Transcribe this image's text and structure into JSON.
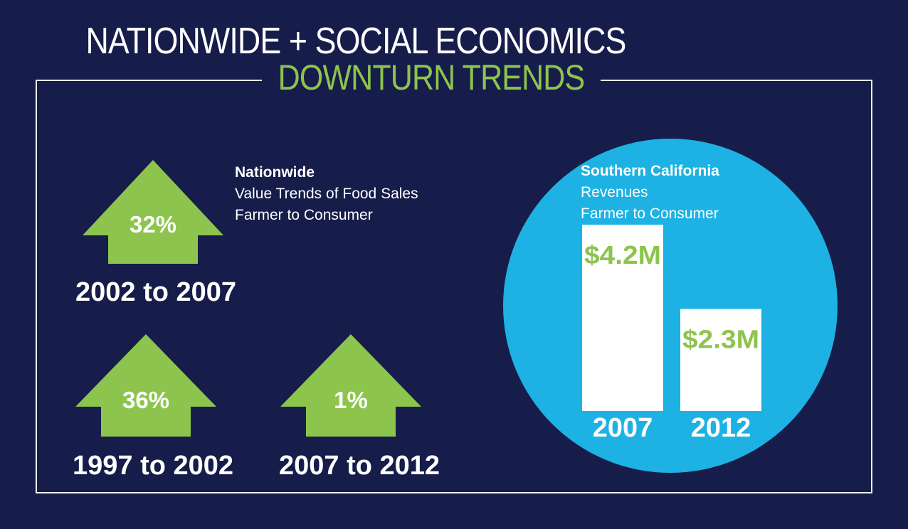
{
  "header": {
    "title": "NATIONWIDE + SOCIAL ECONOMICS",
    "subtitle": "DOWNTURN TRENDS"
  },
  "nationwide": {
    "heading": "Nationwide",
    "line1": "Value Trends of Food Sales",
    "line2": "Farmer to Consumer",
    "arrow_color": "#8dc44d",
    "trends": [
      {
        "percent": "32%",
        "range": "2002 to 2007"
      },
      {
        "percent": "36%",
        "range": "1997 to 2002"
      },
      {
        "percent": "1%",
        "range": "2007 to 2012"
      }
    ]
  },
  "southern_california": {
    "heading": "Southern California",
    "line1": "Revenues",
    "line2": "Farmer to Consumer",
    "circle_color": "#1db2e3"
  },
  "chart_data": {
    "type": "bar",
    "categories": [
      "2007",
      "2012"
    ],
    "values": [
      4.2,
      2.3
    ],
    "value_labels": [
      "$4.2M",
      "$2.3M"
    ],
    "bar_color": "#ffffff",
    "label_color": "#8dc44d",
    "ylim": [
      0,
      4.2
    ],
    "grid": false
  }
}
